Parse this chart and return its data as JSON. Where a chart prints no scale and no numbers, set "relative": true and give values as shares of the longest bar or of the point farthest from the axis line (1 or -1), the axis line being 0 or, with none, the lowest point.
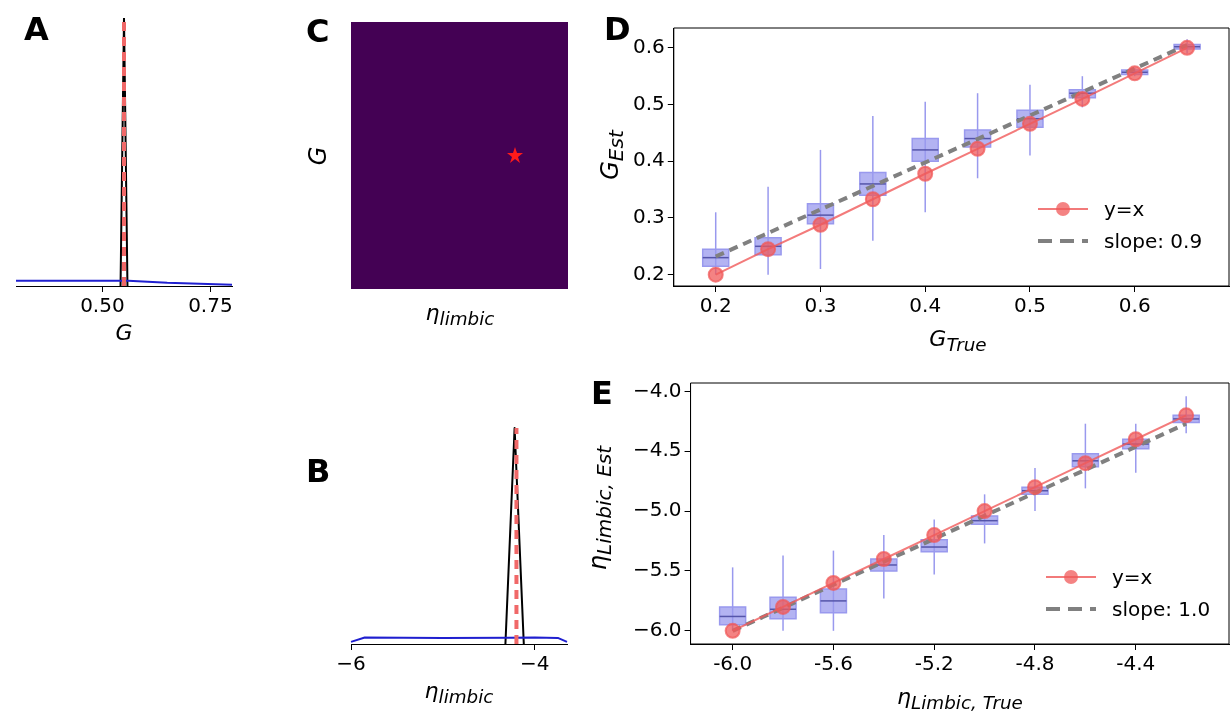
{
  "chart_data": [
    {
      "type": "line",
      "title": "A",
      "xlabel": "G",
      "relative": true,
      "xlim": [
        0.3,
        0.8
      ],
      "xticks": [
        {
          "value": 0.5,
          "label": "0.50"
        },
        0.75
      ],
      "series": [
        {
          "color": "#1f1fcf",
          "x": [
            0.3,
            0.54,
            0.56,
            0.65,
            0.8
          ],
          "values": [
            0.02,
            0.02,
            0.02,
            0.012,
            0.005
          ]
        },
        {
          "color": "#000000",
          "x": [
            0.542,
            0.55,
            0.558
          ],
          "values": [
            0,
            1,
            0
          ]
        }
      ],
      "ref_lines": [
        {
          "axis": "x",
          "value": 0.55,
          "color": "#f06868",
          "line_style": "dashed"
        }
      ]
    },
    {
      "type": "other",
      "title": "C",
      "xlabel": "η$_{limbic}$",
      "ylabel": "G"
    },
    {
      "type": "box",
      "title": "D",
      "xlabel": "G$_{True}$",
      "ylabel": "G$_{Est}$",
      "xlim": [
        0.16,
        0.69
      ],
      "xticks": [
        0.2,
        0.3,
        0.4,
        0.5,
        0.6
      ],
      "ylim": [
        0.18,
        0.635
      ],
      "yticks": [
        0.2,
        0.3,
        0.4,
        0.5,
        0.6
      ],
      "legend": "bottom right",
      "series": [
        {
          "type": "box",
          "color": "#9999ee",
          "x": [
            0.2,
            0.25,
            0.3,
            0.35,
            0.4,
            0.45,
            0.5,
            0.55,
            0.6,
            0.65
          ],
          "boxes": [
            {
              "low": 0.2,
              "q1": 0.215,
              "median": 0.23,
              "q3": 0.245,
              "high": 0.31
            },
            {
              "low": 0.2,
              "q1": 0.235,
              "median": 0.25,
              "q3": 0.265,
              "high": 0.355
            },
            {
              "low": 0.21,
              "q1": 0.29,
              "median": 0.305,
              "q3": 0.325,
              "high": 0.42
            },
            {
              "low": 0.26,
              "q1": 0.34,
              "median": 0.36,
              "q3": 0.38,
              "high": 0.48
            },
            {
              "low": 0.31,
              "q1": 0.4,
              "median": 0.42,
              "q3": 0.44,
              "high": 0.505
            },
            {
              "low": 0.37,
              "q1": 0.425,
              "median": 0.44,
              "q3": 0.455,
              "high": 0.52
            },
            {
              "low": 0.41,
              "q1": 0.46,
              "median": 0.475,
              "q3": 0.49,
              "high": 0.535
            },
            {
              "low": 0.495,
              "q1": 0.512,
              "median": 0.52,
              "q3": 0.526,
              "high": 0.55
            },
            {
              "low": 0.55,
              "q1": 0.553,
              "median": 0.557,
              "q3": 0.561,
              "high": 0.565
            },
            {
              "low": 0.59,
              "q1": 0.598,
              "median": 0.602,
              "q3": 0.606,
              "high": 0.615
            }
          ]
        },
        {
          "type": "line",
          "name": "y=x",
          "color": "#f05a5a",
          "marker": "circle",
          "x": [
            0.2,
            0.25,
            0.3,
            0.35,
            0.4,
            0.45,
            0.5,
            0.55,
            0.6,
            0.65
          ],
          "values": [
            0.2,
            0.245,
            0.288,
            0.333,
            0.378,
            0.422,
            0.466,
            0.51,
            0.555,
            0.6
          ]
        },
        {
          "type": "line",
          "name": "slope: 0.9",
          "color": "#808080",
          "line_style": "dashed",
          "x": [
            0.2,
            0.65
          ],
          "values": [
            0.232,
            0.605
          ]
        }
      ]
    },
    {
      "type": "line",
      "title": "B",
      "xlabel": "η$_{limbic}$",
      "relative": true,
      "xlim": [
        -6.0,
        -3.65
      ],
      "xticks": [
        {
          "value": -6,
          "label": "−6"
        },
        {
          "value": -4,
          "label": "−4"
        }
      ],
      "series": [
        {
          "color": "#1f1fcf",
          "x": [
            -6.0,
            -5.85,
            -5.0,
            -4.0,
            -3.75,
            -3.65
          ],
          "values": [
            0.01,
            0.03,
            0.028,
            0.03,
            0.028,
            0.01
          ]
        },
        {
          "color": "#000000",
          "x": [
            -4.32,
            -4.22,
            -4.12
          ],
          "values": [
            0,
            1,
            0
          ]
        }
      ],
      "ref_lines": [
        {
          "axis": "x",
          "value": -4.2,
          "color": "#f06868",
          "line_style": "dashed"
        }
      ]
    },
    {
      "type": "box",
      "title": "E",
      "xlabel": "η$_{Limbic, True}$",
      "ylabel": "η$_{Limbic, Est}$",
      "xlim": [
        -6.167,
        -4.03
      ],
      "xticks": [
        {
          "value": -6.0,
          "label": "-6.0"
        },
        {
          "value": -5.6,
          "label": "-5.6"
        },
        {
          "value": -5.2,
          "label": "-5.2"
        },
        {
          "value": -4.8,
          "label": "-4.8"
        },
        {
          "value": -4.4,
          "label": "-4.4"
        }
      ],
      "ylim": [
        -6.11,
        -3.93
      ],
      "yticks": [
        {
          "value": -6.0,
          "label": "−6.0"
        },
        {
          "value": -5.5,
          "label": "−5.5"
        },
        {
          "value": -5.0,
          "label": "−5.0"
        },
        {
          "value": -4.5,
          "label": "−4.5"
        },
        {
          "value": -4.0,
          "label": "−4.0"
        }
      ],
      "legend": "bottom right",
      "series": [
        {
          "type": "box",
          "color": "#9999ee",
          "x": [
            -6.0,
            -5.8,
            -5.6,
            -5.4,
            -5.2,
            -5.0,
            -4.8,
            -4.6,
            -4.4,
            -4.2
          ],
          "boxes": [
            {
              "low": -6.0,
              "q1": -5.95,
              "median": -5.88,
              "q3": -5.8,
              "high": -5.47
            },
            {
              "low": -6.0,
              "q1": -5.9,
              "median": -5.82,
              "q3": -5.72,
              "high": -5.37
            },
            {
              "low": -6.0,
              "q1": -5.85,
              "median": -5.75,
              "q3": -5.65,
              "high": -5.33
            },
            {
              "low": -5.73,
              "q1": -5.5,
              "median": -5.45,
              "q3": -5.4,
              "high": -5.2
            },
            {
              "low": -5.53,
              "q1": -5.34,
              "median": -5.3,
              "q3": -5.24,
              "high": -5.07
            },
            {
              "low": -5.27,
              "q1": -5.11,
              "median": -5.08,
              "q3": -5.04,
              "high": -4.86
            },
            {
              "low": -5.0,
              "q1": -4.86,
              "median": -4.83,
              "q3": -4.8,
              "high": -4.64
            },
            {
              "low": -4.81,
              "q1": -4.63,
              "median": -4.58,
              "q3": -4.52,
              "high": -4.27
            },
            {
              "low": -4.68,
              "q1": -4.48,
              "median": -4.44,
              "q3": -4.4,
              "high": -4.27
            },
            {
              "low": -4.35,
              "q1": -4.26,
              "median": -4.23,
              "q3": -4.2,
              "high": -4.04
            }
          ]
        },
        {
          "type": "line",
          "name": "y=x",
          "color": "#f05a5a",
          "marker": "circle",
          "x": [
            -6.0,
            -5.8,
            -5.6,
            -5.4,
            -5.2,
            -5.0,
            -4.8,
            -4.6,
            -4.4,
            -4.2
          ],
          "values": [
            -6.0,
            -5.8,
            -5.6,
            -5.4,
            -5.2,
            -5.0,
            -4.8,
            -4.6,
            -4.4,
            -4.2
          ]
        },
        {
          "type": "line",
          "name": "slope: 1.0",
          "color": "#808080",
          "line_style": "dashed",
          "x": [
            -6.0,
            -4.2
          ],
          "values": [
            -6.0,
            -4.27
          ]
        }
      ]
    }
  ]
}
